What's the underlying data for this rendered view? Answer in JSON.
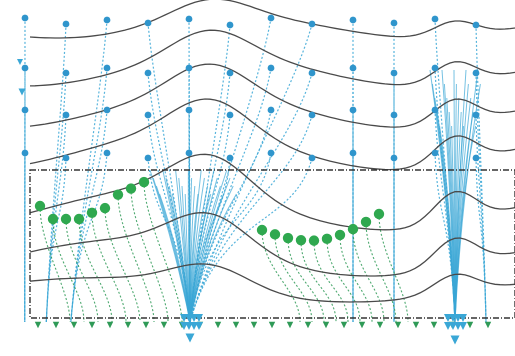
{
  "figure": {
    "description_kind": "streamline-flow-field",
    "colors": {
      "background": "#ffffff",
      "contour_line": "#4a4a4a",
      "flow_upper": "#3aa7d6",
      "flow_lower": "#2f9a57",
      "node_upper": "#2f95cc",
      "node_lower": "#2fa84f",
      "selection_box": "#333333"
    },
    "selection_box_style": "dash-dot",
    "arrow_heads": "triangles-at-bottom"
  }
}
